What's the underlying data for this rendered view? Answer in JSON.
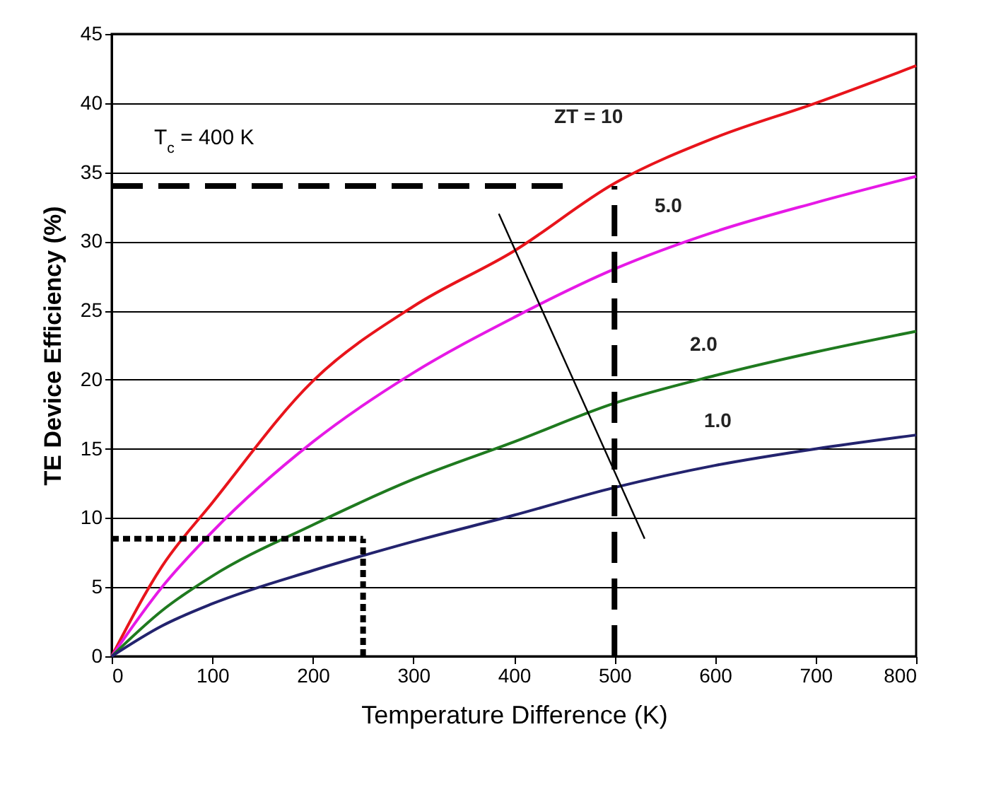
{
  "chart_data": {
    "type": "line",
    "xlabel": "Temperature Difference  (K)",
    "ylabel": "TE Device Efficiency (%)",
    "x": [
      0,
      50,
      100,
      200,
      300,
      400,
      500,
      600,
      700,
      800
    ],
    "series": [
      {
        "name": "ZT = 10",
        "color": "#e8141b",
        "values": [
          0,
          6.5,
          11.1,
          19.9,
          25.3,
          29.3,
          34.2,
          37.5,
          40,
          42.7
        ]
      },
      {
        "name": "5.0",
        "color": "#e619e6",
        "values": [
          0,
          5,
          9,
          15.5,
          20.5,
          24.5,
          28,
          30.7,
          32.8,
          34.7
        ]
      },
      {
        "name": "2.0",
        "color": "#1f7a1f",
        "values": [
          0,
          3.3,
          5.8,
          9.5,
          12.8,
          15.5,
          18.3,
          20.3,
          22,
          23.5
        ]
      },
      {
        "name": "1.0",
        "color": "#23236e",
        "values": [
          0,
          2.2,
          3.8,
          6.2,
          8.3,
          10.2,
          12.2,
          13.8,
          15,
          16
        ]
      },
      {
        "color": "#000000",
        "line_style": "dashed",
        "x": [
          0,
          450
        ],
        "values": [
          34,
          34
        ]
      },
      {
        "color": "#000000",
        "line_style": "dashed",
        "x": [
          500,
          500
        ],
        "values": [
          0,
          34
        ]
      },
      {
        "color": "#000000",
        "line_style": "dotted",
        "x": [
          0,
          250
        ],
        "values": [
          8.5,
          8.5
        ]
      },
      {
        "color": "#000000",
        "line_style": "dotted",
        "x": [
          250,
          250
        ],
        "values": [
          0,
          8.5
        ]
      },
      {
        "color": "#000000",
        "x": [
          530,
          385
        ],
        "values": [
          8.5,
          32
        ]
      }
    ],
    "annotations": [
      "T$_{c}$ = 400 K"
    ],
    "xlim": [
      0,
      800
    ],
    "xticks": [
      0,
      100,
      200,
      300,
      400,
      500,
      600,
      700,
      800
    ],
    "ylim": [
      0,
      45
    ],
    "yticks": [
      0,
      5,
      10,
      15,
      20,
      25,
      30,
      35,
      40,
      45
    ],
    "grid": "y",
    "marker": "none",
    "line_style": "solid"
  }
}
